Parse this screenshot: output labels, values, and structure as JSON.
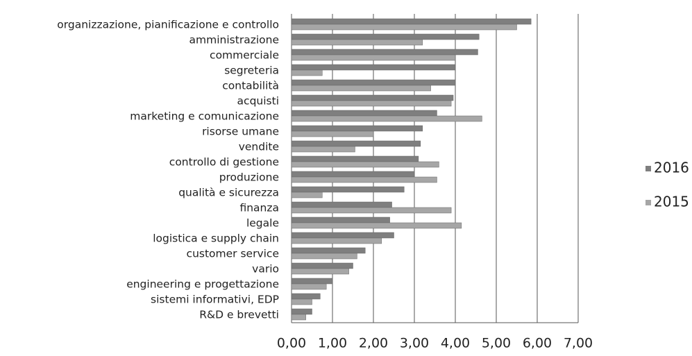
{
  "chart_data": {
    "type": "bar",
    "orientation": "horizontal",
    "categories": [
      "organizzazione, pianificazione e controllo",
      "amministrazione",
      "commerciale",
      "segreteria",
      "contabilità",
      "acquisti",
      "marketing e comunicazione",
      "risorse umane",
      "vendite",
      "controllo di gestione",
      "produzione",
      "qualità e sicurezza",
      "finanza",
      "legale",
      "logistica e supply chain",
      "customer service",
      "vario",
      "engineering e progettazione",
      "sistemi informativi, EDP",
      "R&D e brevetti"
    ],
    "series": [
      {
        "name": "2016",
        "color": "#7f7f7f",
        "values": [
          5.85,
          4.58,
          4.55,
          4.0,
          4.0,
          3.95,
          3.55,
          3.2,
          3.15,
          3.1,
          3.0,
          2.75,
          2.45,
          2.4,
          2.5,
          1.8,
          1.5,
          1.0,
          0.7,
          0.5
        ]
      },
      {
        "name": "2015",
        "color": "#a6a6a6",
        "values": [
          5.5,
          3.2,
          4.0,
          0.75,
          3.4,
          3.9,
          4.65,
          2.0,
          1.55,
          3.6,
          3.55,
          0.75,
          3.9,
          4.15,
          2.2,
          1.6,
          1.4,
          0.85,
          0.5,
          0.35
        ]
      }
    ],
    "xlim": [
      0,
      7
    ],
    "xticks": [
      {
        "value": 0,
        "label": "0,00"
      },
      {
        "value": 1,
        "label": "1,00"
      },
      {
        "value": 2,
        "label": "2,00"
      },
      {
        "value": 3,
        "label": "3,00"
      },
      {
        "value": 4,
        "label": "4,00"
      },
      {
        "value": 5,
        "label": "5,00"
      },
      {
        "value": 6,
        "label": "6,00"
      },
      {
        "value": 7,
        "label": "7,00"
      }
    ],
    "grid": true,
    "legend": "right"
  }
}
